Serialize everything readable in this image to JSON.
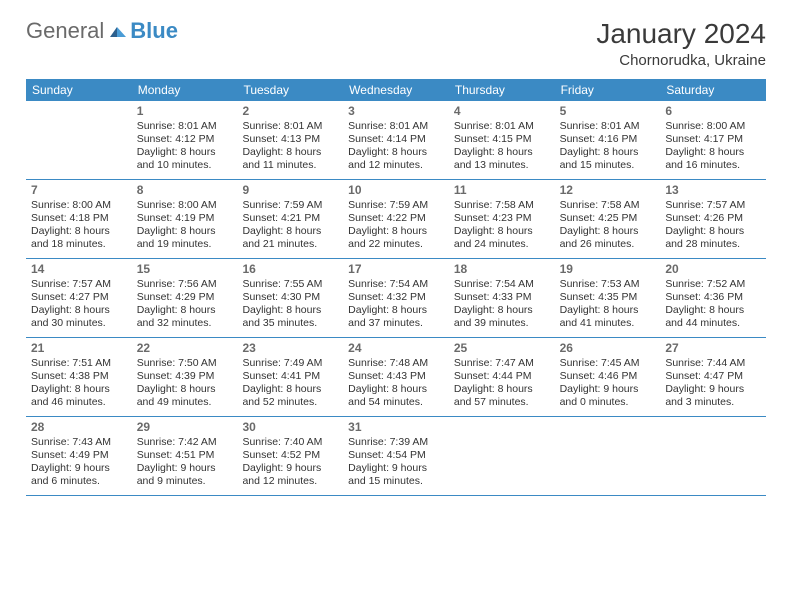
{
  "logo": {
    "part1": "General",
    "part2": "Blue"
  },
  "title": {
    "month": "January 2024",
    "location": "Chornorudka, Ukraine"
  },
  "colors": {
    "headerBg": "#3b8ac4",
    "text": "#333333",
    "border": "#3b8ac4"
  },
  "dow": [
    "Sunday",
    "Monday",
    "Tuesday",
    "Wednesday",
    "Thursday",
    "Friday",
    "Saturday"
  ],
  "weeks": [
    [
      {},
      {
        "n": "1",
        "sr": "Sunrise: 8:01 AM",
        "ss": "Sunset: 4:12 PM",
        "d1": "Daylight: 8 hours",
        "d2": "and 10 minutes."
      },
      {
        "n": "2",
        "sr": "Sunrise: 8:01 AM",
        "ss": "Sunset: 4:13 PM",
        "d1": "Daylight: 8 hours",
        "d2": "and 11 minutes."
      },
      {
        "n": "3",
        "sr": "Sunrise: 8:01 AM",
        "ss": "Sunset: 4:14 PM",
        "d1": "Daylight: 8 hours",
        "d2": "and 12 minutes."
      },
      {
        "n": "4",
        "sr": "Sunrise: 8:01 AM",
        "ss": "Sunset: 4:15 PM",
        "d1": "Daylight: 8 hours",
        "d2": "and 13 minutes."
      },
      {
        "n": "5",
        "sr": "Sunrise: 8:01 AM",
        "ss": "Sunset: 4:16 PM",
        "d1": "Daylight: 8 hours",
        "d2": "and 15 minutes."
      },
      {
        "n": "6",
        "sr": "Sunrise: 8:00 AM",
        "ss": "Sunset: 4:17 PM",
        "d1": "Daylight: 8 hours",
        "d2": "and 16 minutes."
      }
    ],
    [
      {
        "n": "7",
        "sr": "Sunrise: 8:00 AM",
        "ss": "Sunset: 4:18 PM",
        "d1": "Daylight: 8 hours",
        "d2": "and 18 minutes."
      },
      {
        "n": "8",
        "sr": "Sunrise: 8:00 AM",
        "ss": "Sunset: 4:19 PM",
        "d1": "Daylight: 8 hours",
        "d2": "and 19 minutes."
      },
      {
        "n": "9",
        "sr": "Sunrise: 7:59 AM",
        "ss": "Sunset: 4:21 PM",
        "d1": "Daylight: 8 hours",
        "d2": "and 21 minutes."
      },
      {
        "n": "10",
        "sr": "Sunrise: 7:59 AM",
        "ss": "Sunset: 4:22 PM",
        "d1": "Daylight: 8 hours",
        "d2": "and 22 minutes."
      },
      {
        "n": "11",
        "sr": "Sunrise: 7:58 AM",
        "ss": "Sunset: 4:23 PM",
        "d1": "Daylight: 8 hours",
        "d2": "and 24 minutes."
      },
      {
        "n": "12",
        "sr": "Sunrise: 7:58 AM",
        "ss": "Sunset: 4:25 PM",
        "d1": "Daylight: 8 hours",
        "d2": "and 26 minutes."
      },
      {
        "n": "13",
        "sr": "Sunrise: 7:57 AM",
        "ss": "Sunset: 4:26 PM",
        "d1": "Daylight: 8 hours",
        "d2": "and 28 minutes."
      }
    ],
    [
      {
        "n": "14",
        "sr": "Sunrise: 7:57 AM",
        "ss": "Sunset: 4:27 PM",
        "d1": "Daylight: 8 hours",
        "d2": "and 30 minutes."
      },
      {
        "n": "15",
        "sr": "Sunrise: 7:56 AM",
        "ss": "Sunset: 4:29 PM",
        "d1": "Daylight: 8 hours",
        "d2": "and 32 minutes."
      },
      {
        "n": "16",
        "sr": "Sunrise: 7:55 AM",
        "ss": "Sunset: 4:30 PM",
        "d1": "Daylight: 8 hours",
        "d2": "and 35 minutes."
      },
      {
        "n": "17",
        "sr": "Sunrise: 7:54 AM",
        "ss": "Sunset: 4:32 PM",
        "d1": "Daylight: 8 hours",
        "d2": "and 37 minutes."
      },
      {
        "n": "18",
        "sr": "Sunrise: 7:54 AM",
        "ss": "Sunset: 4:33 PM",
        "d1": "Daylight: 8 hours",
        "d2": "and 39 minutes."
      },
      {
        "n": "19",
        "sr": "Sunrise: 7:53 AM",
        "ss": "Sunset: 4:35 PM",
        "d1": "Daylight: 8 hours",
        "d2": "and 41 minutes."
      },
      {
        "n": "20",
        "sr": "Sunrise: 7:52 AM",
        "ss": "Sunset: 4:36 PM",
        "d1": "Daylight: 8 hours",
        "d2": "and 44 minutes."
      }
    ],
    [
      {
        "n": "21",
        "sr": "Sunrise: 7:51 AM",
        "ss": "Sunset: 4:38 PM",
        "d1": "Daylight: 8 hours",
        "d2": "and 46 minutes."
      },
      {
        "n": "22",
        "sr": "Sunrise: 7:50 AM",
        "ss": "Sunset: 4:39 PM",
        "d1": "Daylight: 8 hours",
        "d2": "and 49 minutes."
      },
      {
        "n": "23",
        "sr": "Sunrise: 7:49 AM",
        "ss": "Sunset: 4:41 PM",
        "d1": "Daylight: 8 hours",
        "d2": "and 52 minutes."
      },
      {
        "n": "24",
        "sr": "Sunrise: 7:48 AM",
        "ss": "Sunset: 4:43 PM",
        "d1": "Daylight: 8 hours",
        "d2": "and 54 minutes."
      },
      {
        "n": "25",
        "sr": "Sunrise: 7:47 AM",
        "ss": "Sunset: 4:44 PM",
        "d1": "Daylight: 8 hours",
        "d2": "and 57 minutes."
      },
      {
        "n": "26",
        "sr": "Sunrise: 7:45 AM",
        "ss": "Sunset: 4:46 PM",
        "d1": "Daylight: 9 hours",
        "d2": "and 0 minutes."
      },
      {
        "n": "27",
        "sr": "Sunrise: 7:44 AM",
        "ss": "Sunset: 4:47 PM",
        "d1": "Daylight: 9 hours",
        "d2": "and 3 minutes."
      }
    ],
    [
      {
        "n": "28",
        "sr": "Sunrise: 7:43 AM",
        "ss": "Sunset: 4:49 PM",
        "d1": "Daylight: 9 hours",
        "d2": "and 6 minutes."
      },
      {
        "n": "29",
        "sr": "Sunrise: 7:42 AM",
        "ss": "Sunset: 4:51 PM",
        "d1": "Daylight: 9 hours",
        "d2": "and 9 minutes."
      },
      {
        "n": "30",
        "sr": "Sunrise: 7:40 AM",
        "ss": "Sunset: 4:52 PM",
        "d1": "Daylight: 9 hours",
        "d2": "and 12 minutes."
      },
      {
        "n": "31",
        "sr": "Sunrise: 7:39 AM",
        "ss": "Sunset: 4:54 PM",
        "d1": "Daylight: 9 hours",
        "d2": "and 15 minutes."
      },
      {},
      {},
      {}
    ]
  ]
}
